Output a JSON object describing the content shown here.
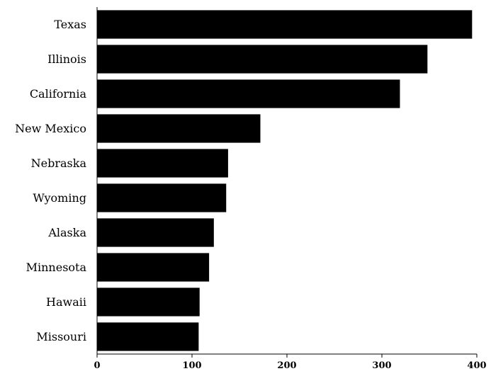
{
  "chart_data": {
    "type": "bar",
    "orientation": "horizontal",
    "categories": [
      "Texas",
      "Illinois",
      "California",
      "New Mexico",
      "Nebraska",
      "Wyoming",
      "Alaska",
      "Minnesota",
      "Hawaii",
      "Missouri"
    ],
    "values": [
      395,
      348,
      319,
      172,
      138,
      136,
      123,
      118,
      108,
      107
    ],
    "title": "",
    "xlabel": "",
    "ylabel": "",
    "xlim": [
      0,
      400
    ],
    "xticks": [
      "0",
      "100",
      "200",
      "300",
      "400"
    ],
    "grid": false,
    "bar_color": "#000000"
  }
}
